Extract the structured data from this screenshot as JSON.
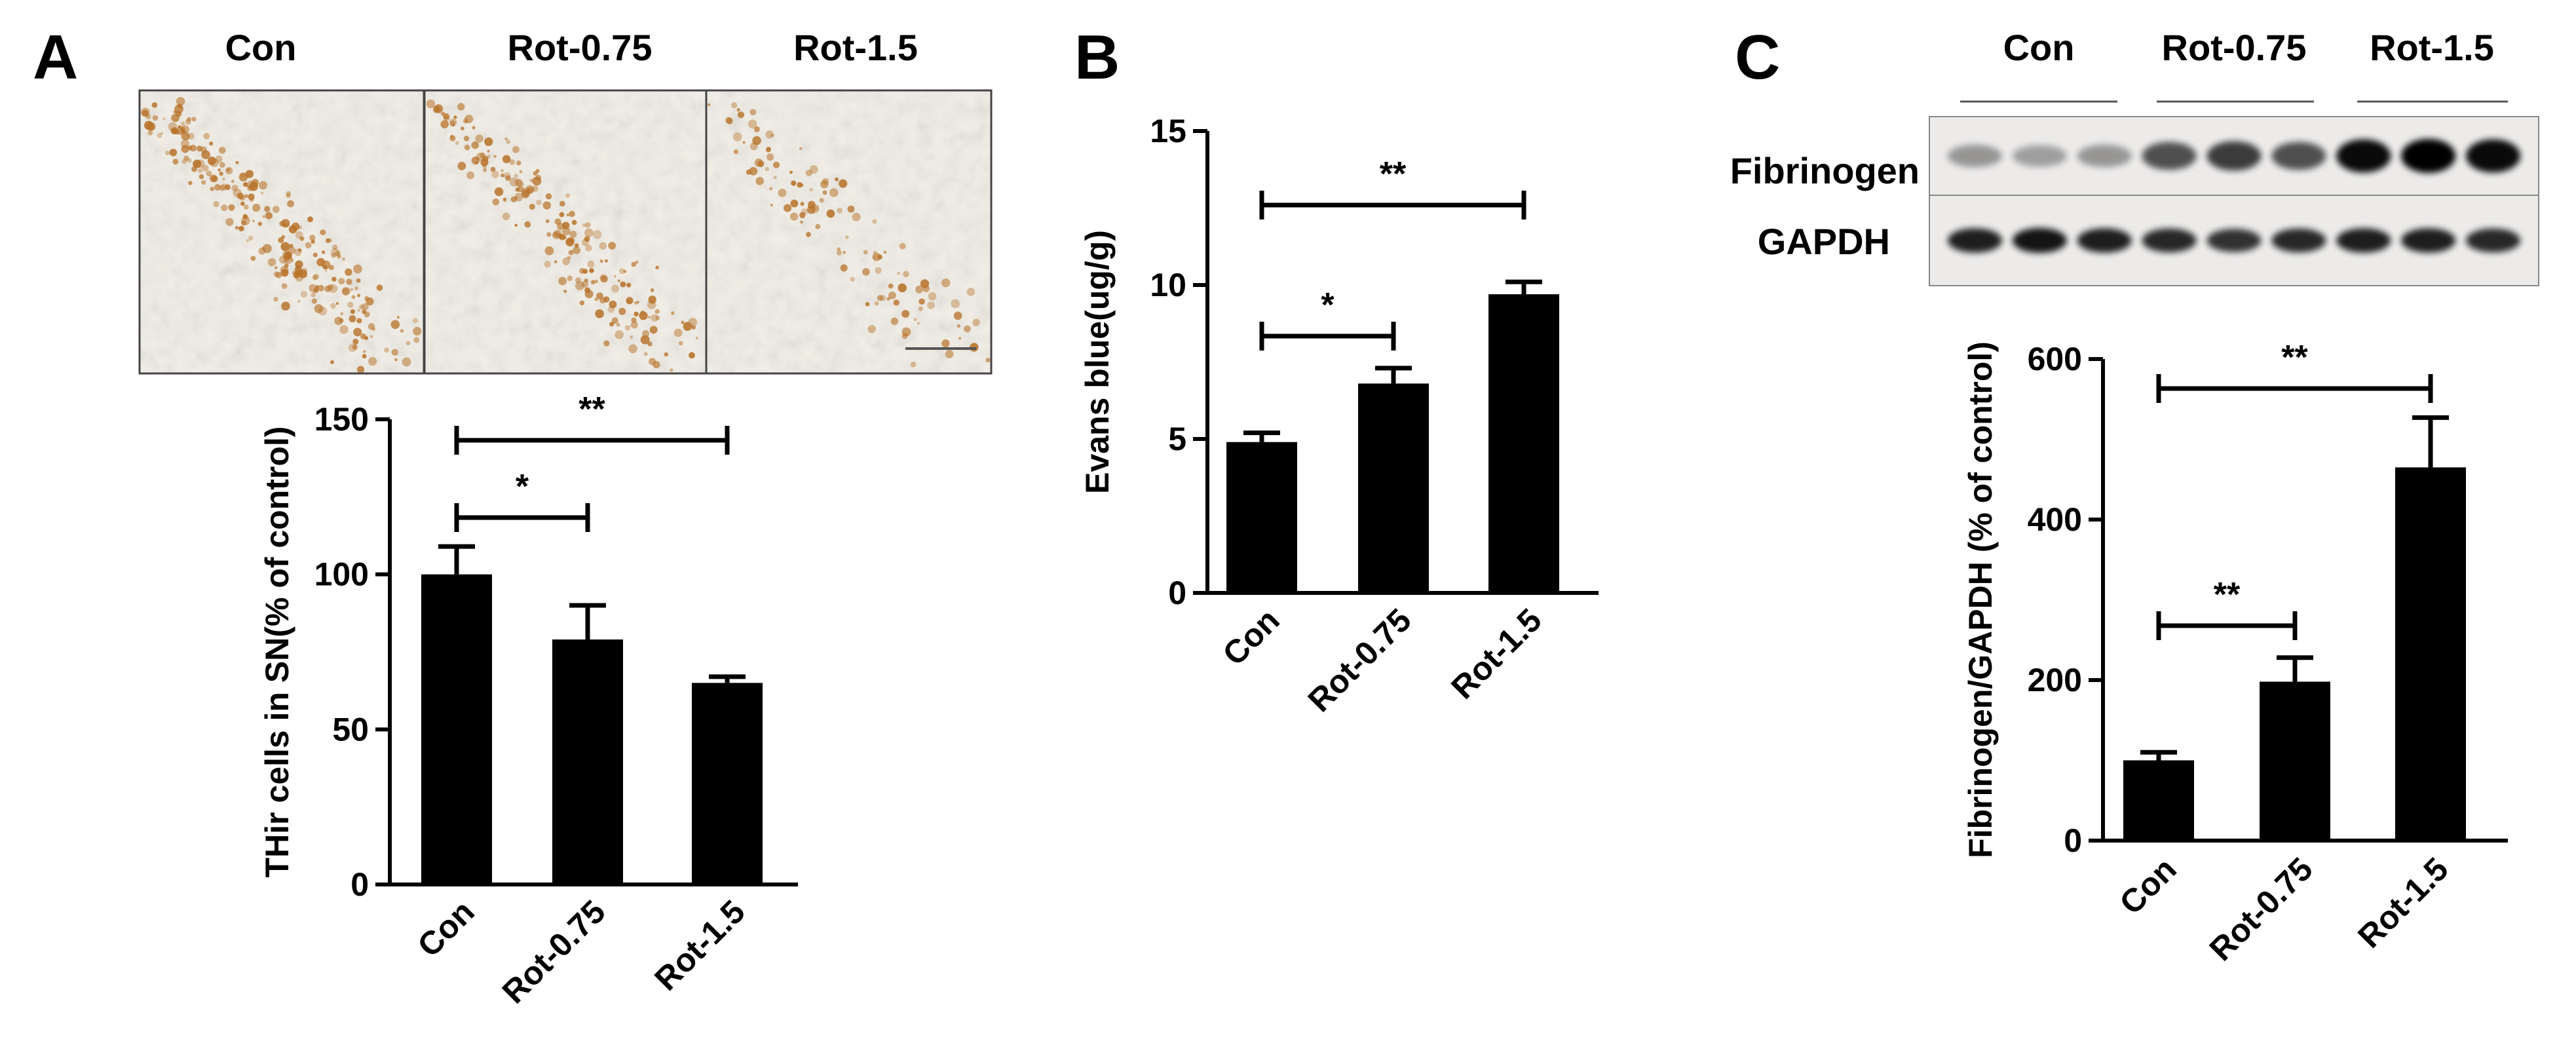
{
  "panels": {
    "a": {
      "letter": "A",
      "micrograph_labels": [
        "Con",
        "Rot-0.75",
        "Rot-1.5"
      ],
      "micrograph_density": [
        1.0,
        0.8,
        0.45
      ],
      "stain_color": "#b8732a"
    },
    "b": {
      "letter": "B"
    },
    "c": {
      "letter": "C",
      "blot_group_labels": [
        "Con",
        "Rot-0.75",
        "Rot-1.5"
      ],
      "blot_row_labels": [
        "Fibrinogen",
        "GAPDH"
      ],
      "fibrinogen_band_intensity": [
        0.25,
        0.2,
        0.25,
        0.6,
        0.7,
        0.6,
        0.95,
        1.0,
        0.95
      ],
      "gapdh_band_intensity": [
        0.85,
        0.9,
        0.85,
        0.8,
        0.75,
        0.8,
        0.85,
        0.85,
        0.8
      ]
    }
  },
  "chart_data": [
    {
      "type": "bar",
      "panel": "A",
      "categories": [
        "Con",
        "Rot-0.75",
        "Rot-1.5"
      ],
      "values": [
        100,
        79,
        65
      ],
      "errors": [
        9,
        11,
        2
      ],
      "ylabel": "THir cells in SN(% of control)",
      "xlabel": "",
      "ylim": [
        0,
        150
      ],
      "yticks": [
        0,
        50,
        100,
        150
      ],
      "significance": [
        {
          "from": 0,
          "to": 1,
          "label": "*"
        },
        {
          "from": 0,
          "to": 2,
          "label": "**"
        }
      ],
      "bar_color": "#000000"
    },
    {
      "type": "bar",
      "panel": "B",
      "categories": [
        "Con",
        "Rot-0.75",
        "Rot-1.5"
      ],
      "values": [
        4.9,
        6.8,
        9.7
      ],
      "errors": [
        0.3,
        0.5,
        0.4
      ],
      "ylabel": "Evans blue(ug/g)",
      "xlabel": "",
      "ylim": [
        0,
        15
      ],
      "yticks": [
        0,
        5,
        10,
        15
      ],
      "significance": [
        {
          "from": 0,
          "to": 1,
          "label": "*"
        },
        {
          "from": 0,
          "to": 2,
          "label": "**"
        }
      ],
      "bar_color": "#000000"
    },
    {
      "type": "bar",
      "panel": "C",
      "categories": [
        "Con",
        "Rot-0.75",
        "Rot-1.5"
      ],
      "values": [
        100,
        198,
        465
      ],
      "errors": [
        10,
        30,
        62
      ],
      "ylabel": "Fibrinogen/GAPDH (% of control)",
      "xlabel": "",
      "ylim": [
        0,
        600
      ],
      "yticks": [
        0,
        200,
        400,
        600
      ],
      "significance": [
        {
          "from": 0,
          "to": 1,
          "label": "**"
        },
        {
          "from": 0,
          "to": 2,
          "label": "**"
        }
      ],
      "bar_color": "#000000"
    }
  ]
}
